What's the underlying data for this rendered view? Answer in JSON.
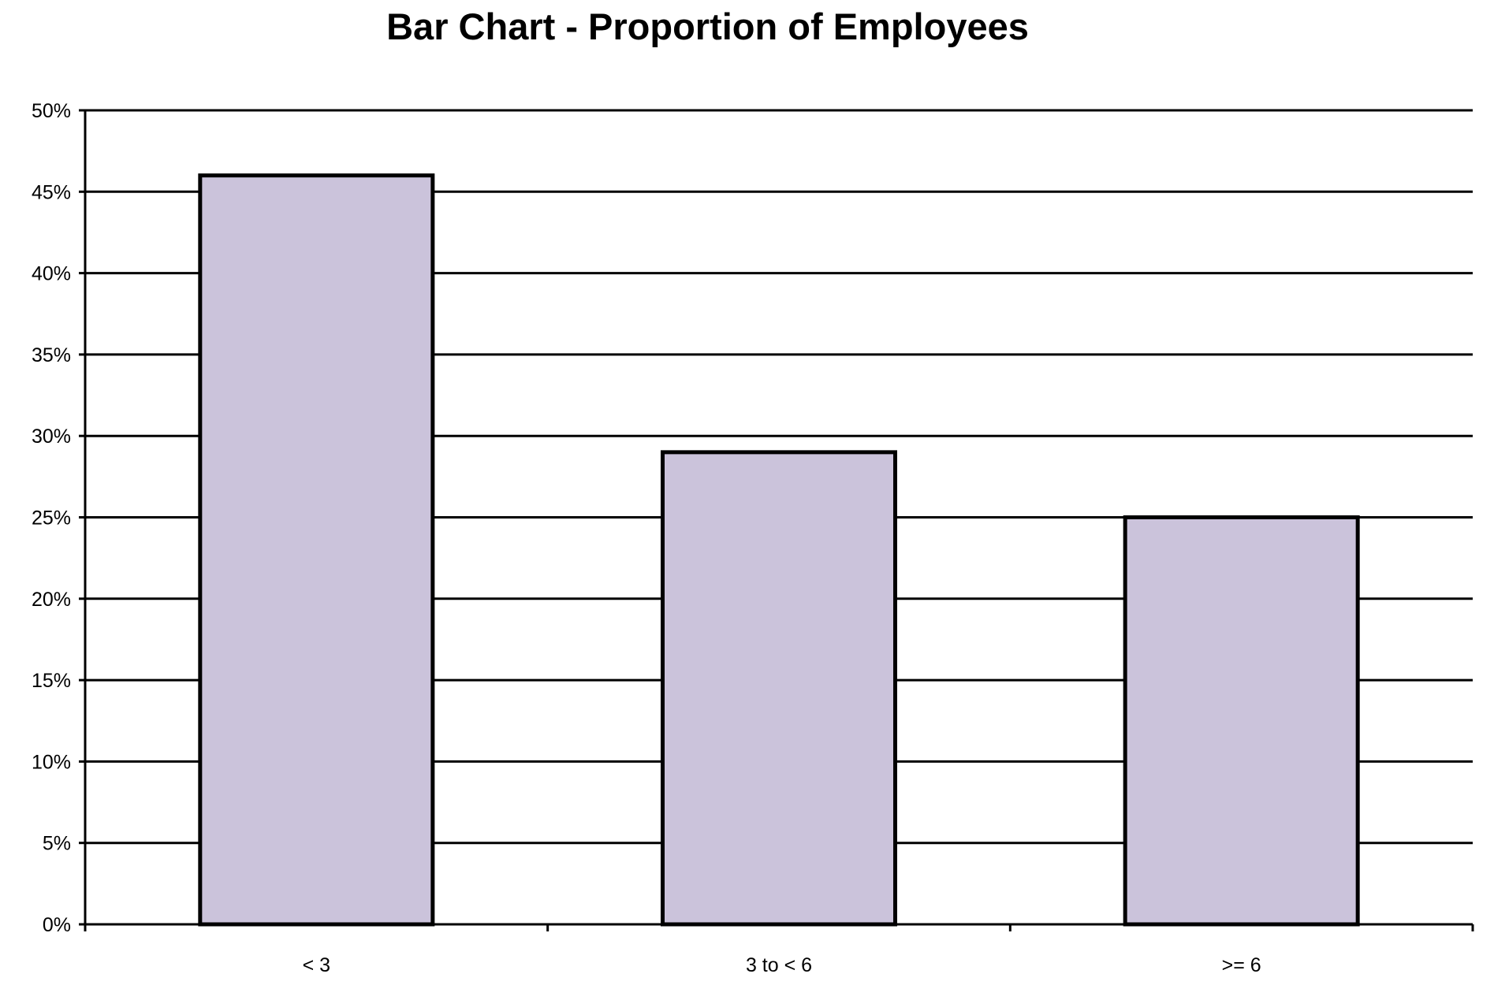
{
  "chart_data": {
    "type": "bar",
    "title": "Bar Chart - Proportion of Employees",
    "xlabel": "",
    "ylabel": "",
    "categories": [
      "< 3",
      "3 to < 6",
      ">= 6"
    ],
    "values": [
      46,
      29,
      25
    ],
    "value_unit": "%",
    "ylim": [
      0,
      50
    ],
    "yticks": [
      0,
      5,
      10,
      15,
      20,
      25,
      30,
      35,
      40,
      45,
      50
    ],
    "ytick_labels": [
      "0%",
      "5%",
      "10%",
      "15%",
      "20%",
      "25%",
      "30%",
      "35%",
      "40%",
      "45%",
      "50%"
    ],
    "grid": true,
    "legend": "none",
    "colors": {
      "bar_fill": "#cbc3db",
      "bar_stroke": "#000000",
      "gridline": "#000000",
      "background": "#ffffff"
    }
  }
}
